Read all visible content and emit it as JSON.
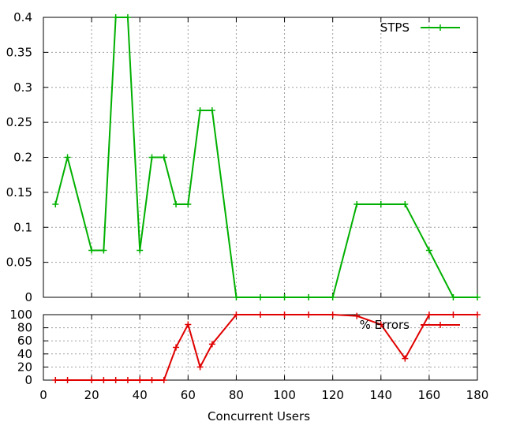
{
  "chart_data": [
    {
      "type": "line",
      "xlabel": "Concurrent Users",
      "xlim": [
        0,
        180
      ],
      "ylim": [
        0,
        0.4
      ],
      "yticks": [
        "0",
        "0.05",
        "0.1",
        "0.15",
        "0.2",
        "0.25",
        "0.3",
        "0.35",
        "0.4"
      ],
      "xticks": [],
      "grid": true,
      "legend_position": "top-right",
      "series": [
        {
          "name": "STPS",
          "color": "#00b000",
          "marker": "plus",
          "x": [
            5,
            10,
            20,
            25,
            30,
            35,
            40,
            45,
            50,
            55,
            60,
            65,
            70,
            80,
            90,
            100,
            110,
            120,
            130,
            140,
            150,
            160,
            170,
            180
          ],
          "y": [
            0.133,
            0.2,
            0.067,
            0.067,
            0.4,
            0.4,
            0.067,
            0.2,
            0.2,
            0.133,
            0.133,
            0.267,
            0.267,
            0,
            0,
            0,
            0,
            0,
            0.133,
            0.133,
            0.133,
            0.067,
            0,
            0
          ]
        }
      ]
    },
    {
      "type": "line",
      "xlabel": "Concurrent Users",
      "xlim": [
        0,
        180
      ],
      "ylim": [
        0,
        100
      ],
      "yticks": [
        "0",
        "20",
        "40",
        "60",
        "80",
        "100"
      ],
      "xticks": [
        "0",
        "20",
        "40",
        "60",
        "80",
        "100",
        "120",
        "140",
        "160",
        "180"
      ],
      "grid": true,
      "legend_position": "top-right",
      "series": [
        {
          "name": "% Errors",
          "color": "#e00000",
          "marker": "plus",
          "x": [
            5,
            10,
            20,
            25,
            30,
            35,
            40,
            45,
            50,
            55,
            60,
            65,
            70,
            80,
            90,
            100,
            110,
            120,
            130,
            140,
            150,
            160,
            170,
            180
          ],
          "y": [
            0,
            0,
            0,
            0,
            0,
            0,
            0,
            0,
            0,
            50,
            85,
            20,
            55,
            100,
            100,
            100,
            100,
            100,
            98,
            85,
            33,
            100,
            100,
            100
          ]
        }
      ]
    }
  ]
}
